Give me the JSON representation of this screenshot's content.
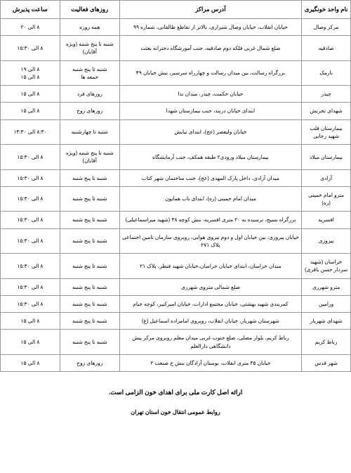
{
  "table": {
    "headers": [
      "نام واحد خونگیری",
      "آدرس مراکز",
      "روزهای فعالیت",
      "ساعت پذیرش"
    ],
    "rows": [
      {
        "name": "مرکز وصال",
        "address": "خیابان انقلاب، خیابان وصال شیرازی، بالاتر از تقاطع طالقانی، شماره ۹۹",
        "days": "همه روزه",
        "hours": "۸ الی ۲۰"
      },
      {
        "name": "صادقیه",
        "address": "ضلع شمال غربی فلکه دوم صادقیه، جنب آموزشگاه دخترانه بعثت",
        "days": "شنبه تا پنج شنبه (ویژه آقایان)",
        "hours": "۸ الی ۱۵:۳۰"
      },
      {
        "name": "نارمک",
        "address": "بزرگراه رسالت، بین میدان رسالت و چهارراه سرسبز، نبش خیابان ۴۹",
        "days": "شنبه تا پنج شنبه\nجمعه ها",
        "hours": "۸ الی ۱۹\n۸ الی ۱۵"
      },
      {
        "name": "چیذر",
        "address": "خیابان حکمت، چیذر، میدان ندا",
        "days": "روزهای فرد",
        "hours": "۸ الی ۱۵"
      },
      {
        "name": "شهدای تجریش",
        "address": "ابتدای خیابان دربند، جنب بیمارستان شهدا",
        "days": "روزهای زوج",
        "hours": "۸ الی ۱۵"
      },
      {
        "name": "بیمارستان قلب شهید رجایی",
        "address": "خیابان ولیعصر (عج)، ابتدای نیایش",
        "days": "شنبه تا چهارشنبه",
        "hours": "۸:۳۰ الی ۱۴:۳۰"
      },
      {
        "name": "بیمارستان میلاد",
        "address": "بیمارستان میلاد ورودی۲ طبقه همکف، جنب آزمایشگاه",
        "days": "شنبه تا پنج شنبه (ویژه آقایان)",
        "hours": "۸ الی ۱۵:۳۰"
      },
      {
        "name": "آزادی",
        "address": "میدان آزادی، داخل پارک المهدی (عج)، جنب ساختمان شهر کتاب",
        "days": "شنبه تا پنج شنبه",
        "hours": "۸ الی ۱۵:۳۰"
      },
      {
        "name": "مترو امام خمینی (ره)",
        "address": "میدان امام خمینی (ره)، ابتدای باب همایون",
        "days": "شنبه تا پنج شنبه",
        "hours": "۸ الی ۱۵:۳۰"
      },
      {
        "name": "افسریه",
        "address": "بزرگراه بسیج، نرسیده به ۲۰ متری افسریه، نبش کوچه ۳۸ (شهید میراسماعیلی)",
        "days": "شنبه تا پنج شنبه",
        "hours": "۸ الی ۱۵:۳۰"
      },
      {
        "name": "پیروزی",
        "address": "خیابان پیروزی، بین خیابان اول و دوم نیروی هوایی، روبروی سازمان تامین اجتماعی پلاک ۲۷۱",
        "days": "شنبه تا پنج شنبه",
        "hours": "۸ الی ۱۵:۳۰"
      },
      {
        "name": "خراسان (شهید سردار حسن باقری)",
        "address": "میدان خراسان، ابتدای خیابان خراسان،خیابان شهید فنطر، پلاک ۲۱",
        "days": "شنبه تا پنج شنبه",
        "hours": "۸ الی ۱۵:۳۰"
      },
      {
        "name": "مترو شهرری",
        "address": "ضلع شمالی متروی شهرری",
        "days": "شنبه تا پنج شنبه",
        "hours": "۸ الی ۱۵:۳۰"
      },
      {
        "name": "ورامین",
        "address": "کمربندی شهید بهشتی، خیابان مجتمع ادارات، خیابان امیرکبیر، کوچه خیام",
        "days": "شنبه تا پنج شنبه",
        "hours": "۸ الی ۱۵:۳۰"
      },
      {
        "name": "شهدای شهریار",
        "address": "شهرستان شهریار، خیابان انقلاب، روبروی امامزاده اسماعیل (ع)",
        "days": "شنبه تا پنج شنبه",
        "hours": "۸ الی ۱۵"
      },
      {
        "name": "رباط کریم",
        "address": "رباط کریم، بلوار مصلی، ضلع جنوب غربی میدان معلم روبروی مرکز پیش دانشگاهی دارالعلم",
        "days": "شنبه تا پنج شنبه",
        "hours": "۸ الی ۱۵"
      },
      {
        "name": "شهر قدس",
        "address": "خیابان ۴۵ متری انقلاب، بوستان آزادگان نبش خ صنعت ۲",
        "days": "روزهای زوج",
        "hours": "۸ الی ۱۵"
      }
    ]
  },
  "footer1": "ارائه اصل کارت ملی برای اهدای خون الزامی است.",
  "footer2": "روابط عمومی انتقال خون استان تهران"
}
